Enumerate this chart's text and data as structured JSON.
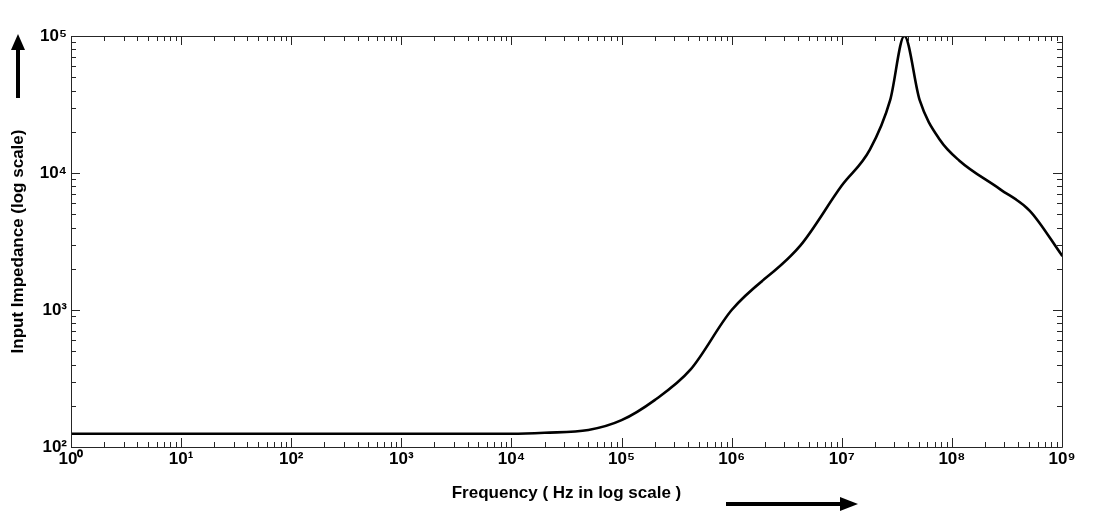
{
  "chart_data": {
    "type": "line",
    "xlabel": "Frequency ( Hz in log scale )",
    "ylabel": "Input Impedance (log scale)",
    "log": "xy",
    "x": [
      1,
      10,
      100,
      1000,
      10000,
      20000,
      50000,
      100000,
      200000,
      420000,
      1000000,
      4200000,
      10000000,
      18000000,
      27500000,
      37000000,
      51000000,
      78000000,
      117000000,
      275000000,
      510000000,
      1000000000
    ],
    "series": [
      {
        "color": "#000000",
        "values": [
          125,
          125,
          125,
          125,
          125,
          127,
          133,
          157,
          220,
          365,
          1000,
          2950,
          8100,
          14800,
          34000,
          100000,
          34000,
          17400,
          12300,
          7600,
          5300,
          2500
        ]
      }
    ],
    "xlim": [
      1,
      1000000000
    ],
    "ylim": [
      100,
      100000
    ],
    "xticks": [
      {
        "value": 1,
        "label": "10⁰"
      },
      {
        "value": 2,
        "label": null
      },
      {
        "value": 3,
        "label": null
      },
      {
        "value": 4,
        "label": null
      },
      {
        "value": 5,
        "label": null
      },
      {
        "value": 6,
        "label": null
      },
      {
        "value": 7,
        "label": null
      },
      {
        "value": 8,
        "label": null
      },
      {
        "value": 9,
        "label": null
      },
      {
        "value": 10,
        "label": "10¹"
      },
      {
        "value": 20,
        "label": null
      },
      {
        "value": 30,
        "label": null
      },
      {
        "value": 40,
        "label": null
      },
      {
        "value": 50,
        "label": null
      },
      {
        "value": 60,
        "label": null
      },
      {
        "value": 70,
        "label": null
      },
      {
        "value": 80,
        "label": null
      },
      {
        "value": 90,
        "label": null
      },
      {
        "value": 100,
        "label": "10²"
      },
      {
        "value": 200,
        "label": null
      },
      {
        "value": 300,
        "label": null
      },
      {
        "value": 400,
        "label": null
      },
      {
        "value": 500,
        "label": null
      },
      {
        "value": 600,
        "label": null
      },
      {
        "value": 700,
        "label": null
      },
      {
        "value": 800,
        "label": null
      },
      {
        "value": 900,
        "label": null
      },
      {
        "value": 1000,
        "label": "10³"
      },
      {
        "value": 2000,
        "label": null
      },
      {
        "value": 3000,
        "label": null
      },
      {
        "value": 4000,
        "label": null
      },
      {
        "value": 5000,
        "label": null
      },
      {
        "value": 6000,
        "label": null
      },
      {
        "value": 7000,
        "label": null
      },
      {
        "value": 8000,
        "label": null
      },
      {
        "value": 9000,
        "label": null
      },
      {
        "value": 10000,
        "label": "10⁴"
      },
      {
        "value": 20000,
        "label": null
      },
      {
        "value": 30000,
        "label": null
      },
      {
        "value": 40000,
        "label": null
      },
      {
        "value": 50000,
        "label": null
      },
      {
        "value": 60000,
        "label": null
      },
      {
        "value": 70000,
        "label": null
      },
      {
        "value": 80000,
        "label": null
      },
      {
        "value": 90000,
        "label": null
      },
      {
        "value": 100000,
        "label": "10⁵"
      },
      {
        "value": 200000,
        "label": null
      },
      {
        "value": 300000,
        "label": null
      },
      {
        "value": 400000,
        "label": null
      },
      {
        "value": 500000,
        "label": null
      },
      {
        "value": 600000,
        "label": null
      },
      {
        "value": 700000,
        "label": null
      },
      {
        "value": 800000,
        "label": null
      },
      {
        "value": 900000,
        "label": null
      },
      {
        "value": 1000000,
        "label": "10⁶"
      },
      {
        "value": 2000000,
        "label": null
      },
      {
        "value": 3000000,
        "label": null
      },
      {
        "value": 4000000,
        "label": null
      },
      {
        "value": 5000000,
        "label": null
      },
      {
        "value": 6000000,
        "label": null
      },
      {
        "value": 7000000,
        "label": null
      },
      {
        "value": 8000000,
        "label": null
      },
      {
        "value": 9000000,
        "label": null
      },
      {
        "value": 10000000,
        "label": "10⁷"
      },
      {
        "value": 20000000,
        "label": null
      },
      {
        "value": 30000000,
        "label": null
      },
      {
        "value": 40000000,
        "label": null
      },
      {
        "value": 50000000,
        "label": null
      },
      {
        "value": 60000000,
        "label": null
      },
      {
        "value": 70000000,
        "label": null
      },
      {
        "value": 80000000,
        "label": null
      },
      {
        "value": 90000000,
        "label": null
      },
      {
        "value": 100000000,
        "label": "10⁸"
      },
      {
        "value": 200000000,
        "label": null
      },
      {
        "value": 300000000,
        "label": null
      },
      {
        "value": 400000000,
        "label": null
      },
      {
        "value": 500000000,
        "label": null
      },
      {
        "value": 600000000,
        "label": null
      },
      {
        "value": 700000000,
        "label": null
      },
      {
        "value": 800000000,
        "label": null
      },
      {
        "value": 900000000,
        "label": null
      },
      {
        "value": 1000000000,
        "label": "10⁹"
      }
    ],
    "yticks": [
      {
        "value": 100,
        "label": "10²"
      },
      {
        "value": 200,
        "label": null
      },
      {
        "value": 300,
        "label": null
      },
      {
        "value": 400,
        "label": null
      },
      {
        "value": 500,
        "label": null
      },
      {
        "value": 600,
        "label": null
      },
      {
        "value": 700,
        "label": null
      },
      {
        "value": 800,
        "label": null
      },
      {
        "value": 900,
        "label": null
      },
      {
        "value": 1000,
        "label": "10³"
      },
      {
        "value": 2000,
        "label": null
      },
      {
        "value": 3000,
        "label": null
      },
      {
        "value": 4000,
        "label": null
      },
      {
        "value": 5000,
        "label": null
      },
      {
        "value": 6000,
        "label": null
      },
      {
        "value": 7000,
        "label": null
      },
      {
        "value": 8000,
        "label": null
      },
      {
        "value": 9000,
        "label": null
      },
      {
        "value": 10000,
        "label": "10⁴"
      },
      {
        "value": 20000,
        "label": null
      },
      {
        "value": 30000,
        "label": null
      },
      {
        "value": 40000,
        "label": null
      },
      {
        "value": 50000,
        "label": null
      },
      {
        "value": 60000,
        "label": null
      },
      {
        "value": 70000,
        "label": null
      },
      {
        "value": 80000,
        "label": null
      },
      {
        "value": 90000,
        "label": null
      },
      {
        "value": 100000,
        "label": "10⁵"
      }
    ]
  }
}
